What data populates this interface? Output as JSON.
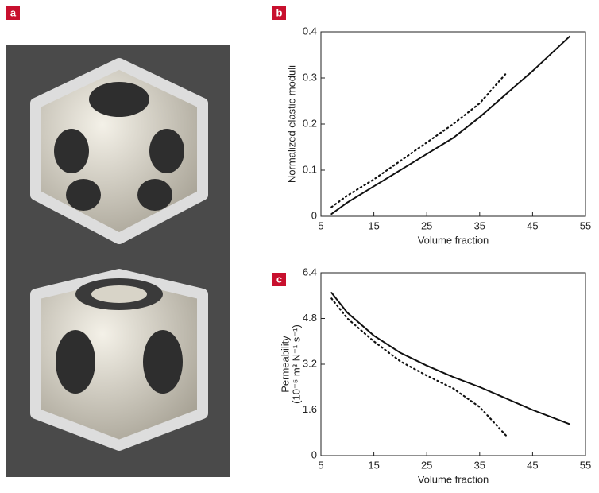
{
  "panel_a": {
    "label": "a"
  },
  "chart_data": [
    {
      "type": "line",
      "panel_label": "b",
      "ylabel": "Normalized elastic moduli",
      "xlabel": "Volume fraction",
      "xlim": [
        5,
        55
      ],
      "xticks": [
        5,
        15,
        25,
        35,
        45,
        55
      ],
      "ylim": [
        0,
        0.4
      ],
      "yticks": [
        0,
        0.1,
        0.2,
        0.3,
        0.4
      ],
      "series": [
        {
          "color": "#111111",
          "style": "solid",
          "x": [
            7,
            10,
            15,
            20,
            25,
            30,
            35,
            40,
            45,
            52
          ],
          "values": [
            0.005,
            0.03,
            0.065,
            0.1,
            0.135,
            0.17,
            0.215,
            0.265,
            0.315,
            0.39
          ]
        },
        {
          "color": "#111111",
          "style": "dotted",
          "x": [
            7,
            10,
            15,
            20,
            25,
            30,
            35,
            40
          ],
          "values": [
            0.02,
            0.045,
            0.08,
            0.12,
            0.16,
            0.2,
            0.245,
            0.31
          ]
        }
      ]
    },
    {
      "type": "line",
      "panel_label": "c",
      "ylabel": "Permeability",
      "yunit": "(10⁻⁵ m³ N⁻¹ s⁻¹)",
      "xlabel": "Volume fraction",
      "xlim": [
        5,
        55
      ],
      "xticks": [
        5,
        15,
        25,
        35,
        45,
        55
      ],
      "ylim": [
        0,
        6.4
      ],
      "yticks": [
        0,
        1.6,
        3.2,
        4.8,
        6.4
      ],
      "series": [
        {
          "color": "#111111",
          "style": "solid",
          "x": [
            7,
            10,
            15,
            20,
            25,
            30,
            35,
            40,
            45,
            52
          ],
          "values": [
            5.7,
            5.0,
            4.2,
            3.6,
            3.15,
            2.75,
            2.4,
            2.0,
            1.6,
            1.1
          ]
        },
        {
          "color": "#111111",
          "style": "dotted",
          "x": [
            7,
            10,
            15,
            20,
            25,
            30,
            35,
            40
          ],
          "values": [
            5.5,
            4.8,
            4.0,
            3.3,
            2.8,
            2.35,
            1.7,
            0.7
          ]
        }
      ]
    }
  ]
}
